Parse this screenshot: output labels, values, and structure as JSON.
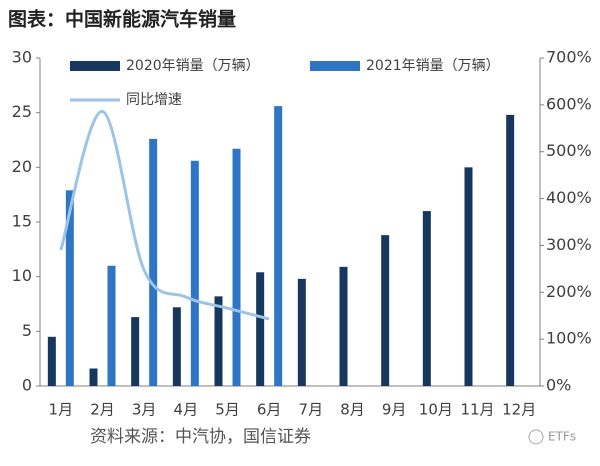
{
  "chart_data": {
    "type": "bar",
    "title": "图表：中国新能源汽车销量",
    "source": "资料来源：中汽协，国信证券",
    "watermark": "ETFs",
    "categories": [
      "1月",
      "2月",
      "3月",
      "4月",
      "5月",
      "6月",
      "7月",
      "8月",
      "9月",
      "10月",
      "11月",
      "12月"
    ],
    "series": [
      {
        "name": "2020年销量（万辆）",
        "color": "#17375e",
        "values": [
          4.5,
          1.6,
          6.3,
          7.2,
          8.2,
          10.4,
          9.8,
          10.9,
          13.8,
          16.0,
          20.0,
          24.8
        ]
      },
      {
        "name": "2021年销量（万辆）",
        "color": "#2e75c6",
        "values": [
          17.9,
          11.0,
          22.6,
          20.6,
          21.7,
          25.6,
          null,
          null,
          null,
          null,
          null,
          null
        ]
      },
      {
        "name": "同比增速",
        "type": "line",
        "axis": "y2",
        "color": "#9dc3e6",
        "values": [
          290,
          586,
          247,
          190,
          166,
          143,
          null,
          null,
          null,
          null,
          null,
          null
        ]
      }
    ],
    "ylim": [
      0,
      30
    ],
    "yticks": [
      0,
      5,
      10,
      15,
      20,
      25,
      30
    ],
    "y2lim": [
      0,
      700
    ],
    "y2ticks": [
      {
        "value": 0,
        "label": "0%"
      },
      {
        "value": 100,
        "label": "100%"
      },
      {
        "value": 200,
        "label": "200%"
      },
      {
        "value": 300,
        "label": "300%"
      },
      {
        "value": 400,
        "label": "400%"
      },
      {
        "value": 500,
        "label": "500%"
      },
      {
        "value": 600,
        "label": "600%"
      },
      {
        "value": 700,
        "label": "700%"
      }
    ],
    "grid": false
  }
}
